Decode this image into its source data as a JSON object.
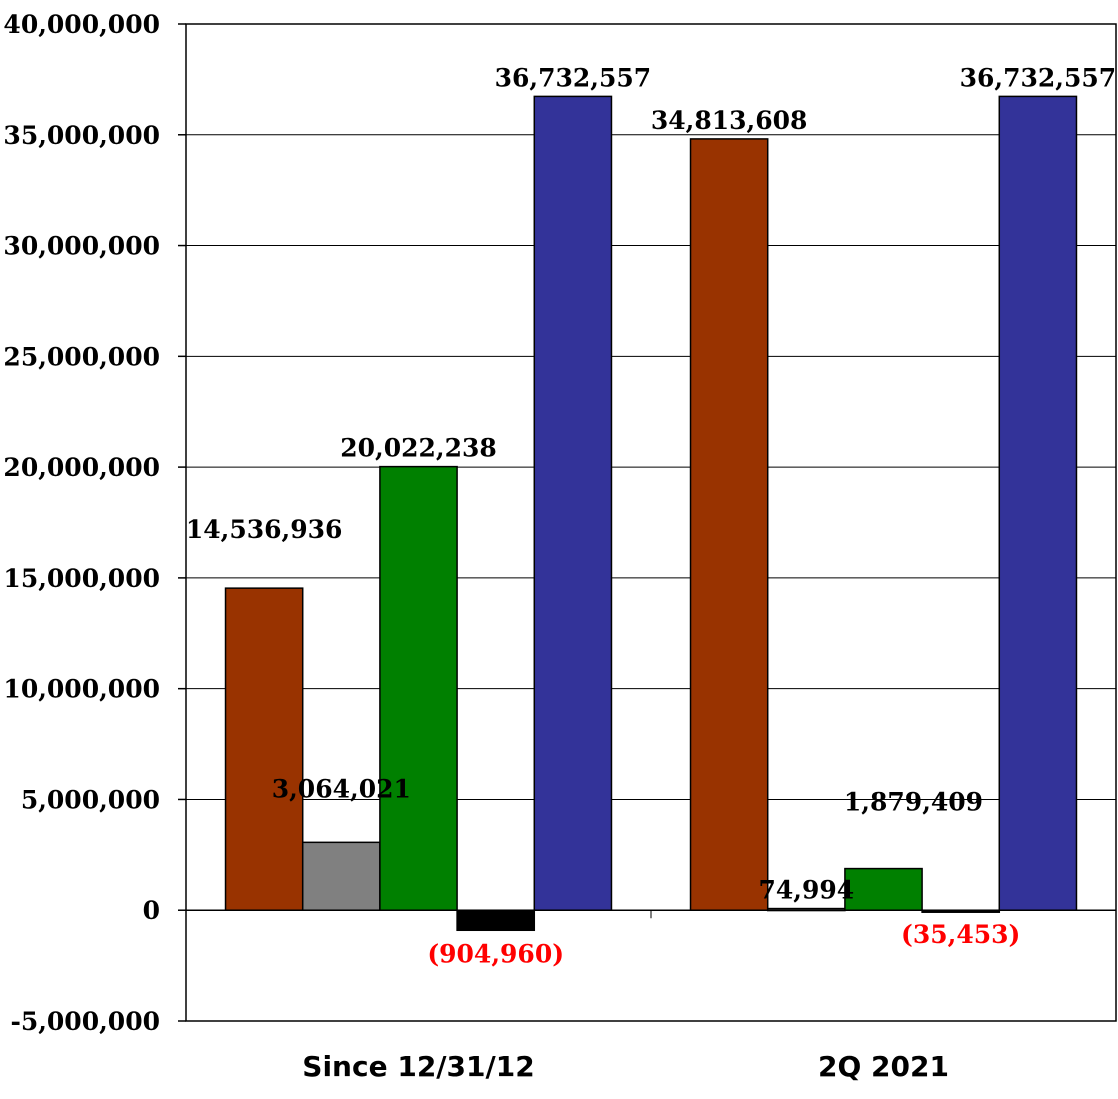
{
  "chart_data": {
    "type": "bar",
    "categories": [
      "Since 12/31/12",
      "2Q 2021"
    ],
    "series": [
      {
        "color": "#993300",
        "values": [
          14536936,
          34813608
        ]
      },
      {
        "color": "#808080",
        "values": [
          3064021,
          74994
        ]
      },
      {
        "color": "#008000",
        "values": [
          20022238,
          1879409
        ]
      },
      {
        "color": "#000000",
        "values": [
          -904960,
          -35453
        ]
      },
      {
        "color": "#333399",
        "values": [
          36732557,
          36732557
        ]
      }
    ],
    "data_labels": [
      [
        "14,536,936",
        "34,813,608"
      ],
      [
        "3,064,021",
        "74,994"
      ],
      [
        "20,022,238",
        "1,879,409"
      ],
      [
        "(904,960)",
        "(35,453)"
      ],
      [
        "36,732,557",
        "36,732,557"
      ]
    ],
    "negative_label_color": "#ff0000",
    "ylim": [
      -5000000,
      40000000
    ],
    "yticks": [
      -5000000,
      0,
      5000000,
      10000000,
      15000000,
      20000000,
      25000000,
      30000000,
      35000000,
      40000000
    ],
    "ytick_labels": [
      "-5,000,000",
      "0",
      "5,000,000",
      "10,000,000",
      "15,000,000",
      "20,000,000",
      "25,000,000",
      "30,000,000",
      "35,000,000",
      "40,000,000"
    ],
    "grid": true,
    "legend": "none",
    "title": "",
    "xlabel": "",
    "ylabel": ""
  }
}
